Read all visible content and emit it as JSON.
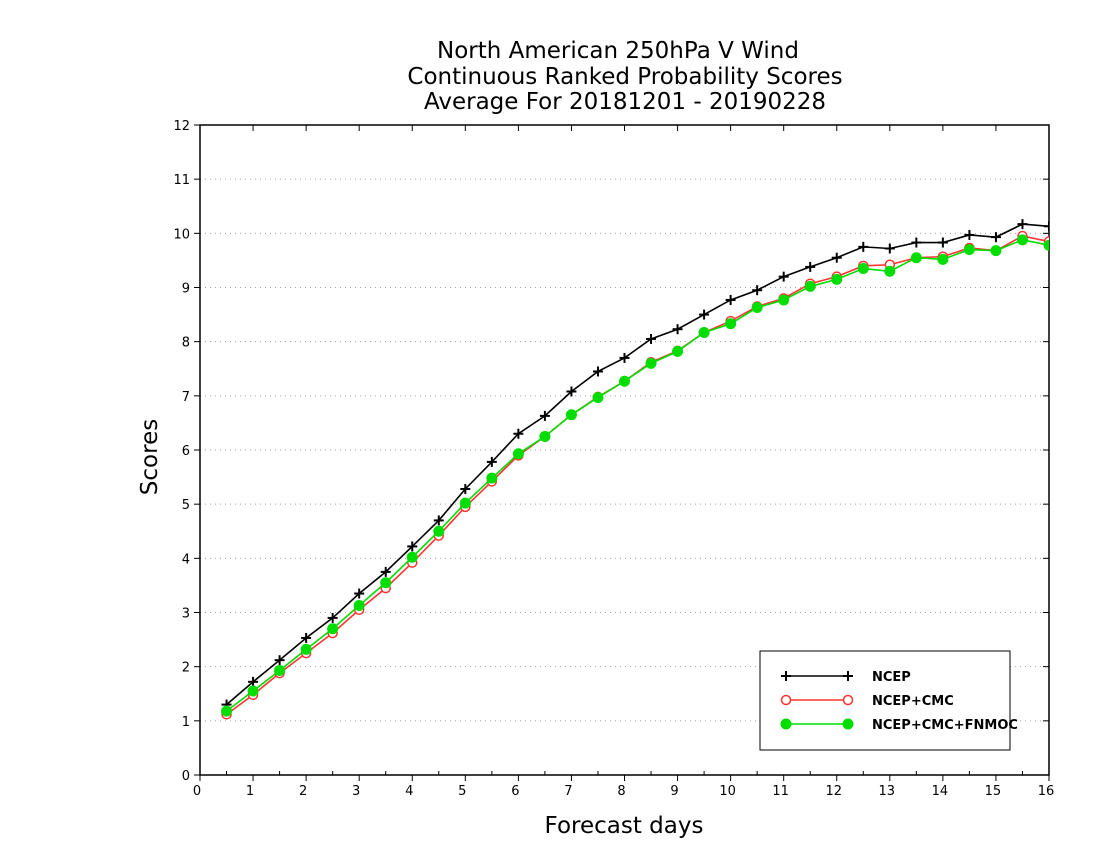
{
  "chart_data": {
    "type": "line",
    "title": [
      "North American 250hPa V Wind",
      "Continuous Ranked Probability Scores",
      "Average For 20181201 - 20190228"
    ],
    "xlabel": "Forecast days",
    "ylabel": "Scores",
    "xlim": [
      0,
      16
    ],
    "ylim": [
      0,
      12
    ],
    "xticks": [
      "0",
      "1",
      "2",
      "3",
      "4",
      "5",
      "6",
      "7",
      "8",
      "9",
      "10",
      "11",
      "12",
      "13",
      "14",
      "15",
      "16"
    ],
    "yticks": [
      "0",
      "1",
      "2",
      "3",
      "4",
      "5",
      "6",
      "7",
      "8",
      "9",
      "10",
      "11",
      "12"
    ],
    "grid": "horizontal dotted",
    "legend_position": "bottom-right",
    "x": [
      0.5,
      1,
      1.5,
      2,
      2.5,
      3,
      3.5,
      4,
      4.5,
      5,
      5.5,
      6,
      6.5,
      7,
      7.5,
      8,
      8.5,
      9,
      9.5,
      10,
      10.5,
      11,
      11.5,
      12,
      12.5,
      13,
      13.5,
      14,
      14.5,
      15,
      15.5,
      16
    ],
    "series": [
      {
        "name": "NCEP",
        "color": "#000000",
        "marker": "plus",
        "values": [
          1.3,
          1.72,
          2.12,
          2.53,
          2.9,
          3.35,
          3.75,
          4.22,
          4.7,
          5.28,
          5.78,
          6.3,
          6.63,
          7.08,
          7.45,
          7.7,
          8.05,
          8.23,
          8.5,
          8.77,
          8.95,
          9.2,
          9.38,
          9.55,
          9.75,
          9.72,
          9.83,
          9.83,
          9.97,
          9.93,
          10.17,
          10.13
        ]
      },
      {
        "name": "NCEP+CMC",
        "color": "#ff3333",
        "marker": "open-circle",
        "values": [
          1.12,
          1.48,
          1.88,
          2.25,
          2.62,
          3.05,
          3.45,
          3.92,
          4.42,
          4.95,
          5.42,
          5.9,
          6.25,
          6.65,
          6.98,
          7.27,
          7.62,
          7.83,
          8.17,
          8.38,
          8.65,
          8.8,
          9.07,
          9.2,
          9.4,
          9.42,
          9.55,
          9.57,
          9.73,
          9.68,
          9.95,
          9.85
        ]
      },
      {
        "name": "NCEP+CMC+FNMOC",
        "color": "#00dd00",
        "marker": "filled-circle",
        "values": [
          1.18,
          1.55,
          1.93,
          2.32,
          2.7,
          3.13,
          3.55,
          4.02,
          4.5,
          5.02,
          5.48,
          5.93,
          6.25,
          6.65,
          6.97,
          7.27,
          7.6,
          7.82,
          8.17,
          8.33,
          8.63,
          8.77,
          9.02,
          9.15,
          9.35,
          9.3,
          9.55,
          9.52,
          9.7,
          9.68,
          9.88,
          9.78
        ]
      }
    ]
  }
}
